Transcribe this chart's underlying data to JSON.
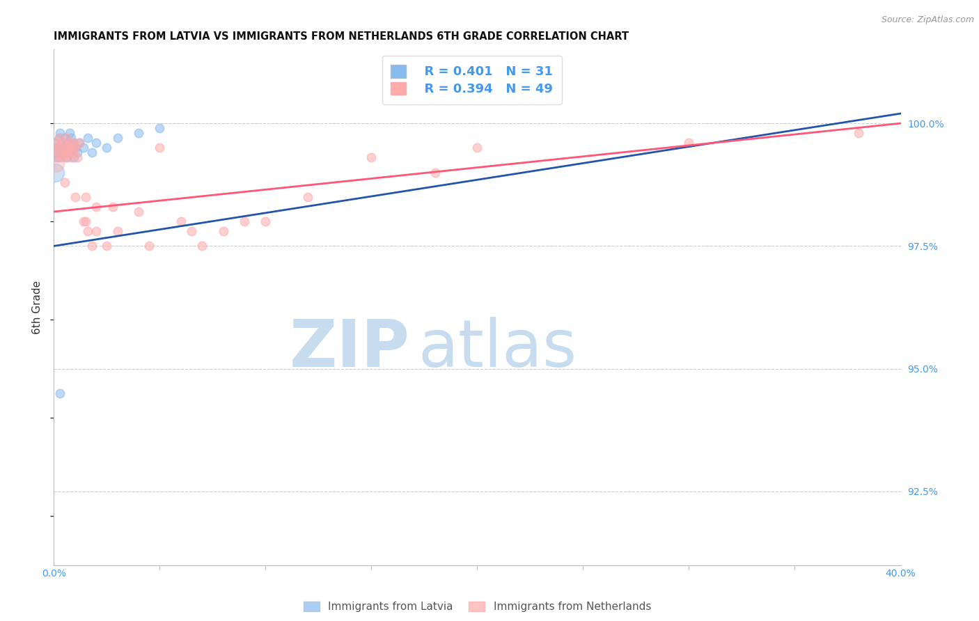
{
  "title": "IMMIGRANTS FROM LATVIA VS IMMIGRANTS FROM NETHERLANDS 6TH GRADE CORRELATION CHART",
  "source": "Source: ZipAtlas.com",
  "ylabel": "6th Grade",
  "ylabel_right_ticks": [
    92.5,
    95.0,
    97.5,
    100.0
  ],
  "ylabel_right_labels": [
    "92.5%",
    "95.0%",
    "97.5%",
    "100.0%"
  ],
  "xlim": [
    0.0,
    40.0
  ],
  "ylim": [
    91.0,
    101.5
  ],
  "legend_latvia_R": "R = 0.401",
  "legend_latvia_N": "N = 31",
  "legend_neth_R": "R = 0.394",
  "legend_neth_N": "N = 49",
  "legend_labels": [
    "Immigrants from Latvia",
    "Immigrants from Netherlands"
  ],
  "color_latvia": "#88BBEE",
  "color_neth": "#FFAAAA",
  "color_latvia_line": "#2255AA",
  "color_neth_line": "#FF5577",
  "color_right_labels": "#4499EE",
  "watermark_zip": "ZIP",
  "watermark_atlas": "atlas",
  "watermark_color_zip": "#C8DCF0",
  "watermark_color_atlas": "#C8DCF0",
  "background_color": "#FFFFFF",
  "latvia_x": [
    0.05,
    0.1,
    0.15,
    0.2,
    0.25,
    0.3,
    0.35,
    0.4,
    0.45,
    0.5,
    0.55,
    0.6,
    0.65,
    0.7,
    0.75,
    0.8,
    0.85,
    0.9,
    0.95,
    1.0,
    1.1,
    1.2,
    1.4,
    1.6,
    1.8,
    2.0,
    2.5,
    3.0,
    4.0,
    5.0,
    0.3
  ],
  "latvia_y": [
    99.6,
    99.4,
    99.5,
    99.3,
    99.7,
    99.8,
    99.5,
    99.6,
    99.4,
    99.7,
    99.5,
    99.3,
    99.6,
    99.4,
    99.8,
    99.7,
    99.5,
    99.6,
    99.3,
    99.5,
    99.4,
    99.6,
    99.5,
    99.7,
    99.4,
    99.6,
    99.5,
    99.7,
    99.8,
    99.9,
    94.5
  ],
  "neth_x": [
    0.05,
    0.1,
    0.15,
    0.2,
    0.25,
    0.3,
    0.35,
    0.4,
    0.45,
    0.5,
    0.55,
    0.6,
    0.65,
    0.7,
    0.75,
    0.8,
    0.85,
    0.9,
    0.95,
    1.0,
    1.1,
    1.2,
    1.4,
    1.5,
    1.6,
    1.8,
    2.0,
    2.5,
    3.0,
    4.0,
    5.0,
    6.0,
    7.0,
    8.0,
    10.0,
    15.0,
    20.0,
    38.0,
    0.5,
    1.0,
    1.5,
    2.0,
    2.8,
    4.5,
    6.5,
    9.0,
    12.0,
    18.0,
    30.0
  ],
  "neth_y": [
    99.5,
    99.3,
    99.6,
    99.4,
    99.7,
    99.5,
    99.3,
    99.6,
    99.4,
    99.5,
    99.3,
    99.7,
    99.4,
    99.5,
    99.6,
    99.3,
    99.5,
    99.4,
    99.6,
    99.5,
    99.3,
    99.6,
    98.0,
    98.5,
    97.8,
    97.5,
    98.3,
    97.5,
    97.8,
    98.2,
    99.5,
    98.0,
    97.5,
    97.8,
    98.0,
    99.3,
    99.5,
    99.8,
    98.8,
    98.5,
    98.0,
    97.8,
    98.3,
    97.5,
    97.8,
    98.0,
    98.5,
    99.0,
    99.6
  ],
  "latvia_size_large": 350,
  "latvia_size_small": 80,
  "neth_size_large": 350,
  "neth_size_small": 80
}
